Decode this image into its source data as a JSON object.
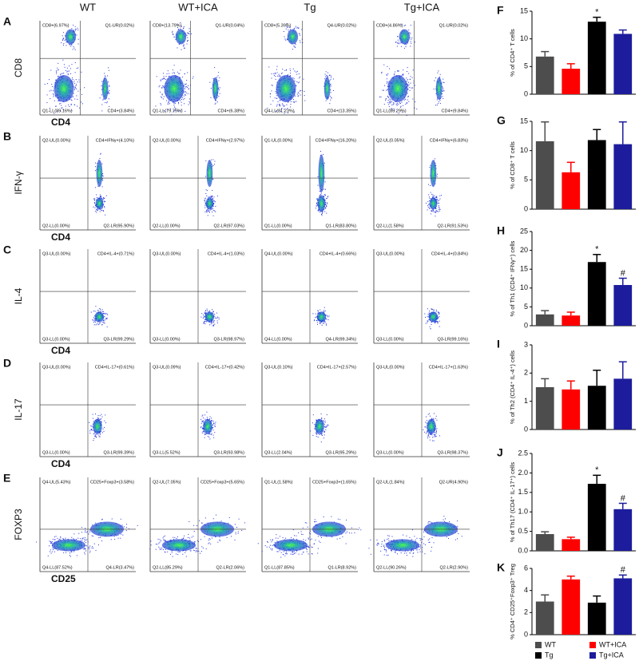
{
  "column_headers": [
    "WT",
    "WT+ICA",
    "Tg",
    "Tg+ICA"
  ],
  "flow_rows": [
    {
      "letter": "A",
      "y_label": "CD8",
      "x_label": "CD4",
      "plots": [
        [
          "CD8+(6.97%)",
          "Q1-UR(0.02%)",
          "Q1-LL(89.16%)",
          "CD4+(3.84%)"
        ],
        [
          "CD8+(13.79%)",
          "Q1-UR(0.04%)",
          "Q1-LL(79.79%)",
          "CD4+(6.38%)"
        ],
        [
          "CD8+(5.39%)",
          "Q4-UR(0.02%)",
          "Q4-LL(81.23%)",
          "CD4+(13.35%)"
        ],
        [
          "CD8+(4.86%)",
          "Q1-UR(0.02%)",
          "Q1-LL(85.29%)",
          "CD4+(9.84%)"
        ]
      ]
    },
    {
      "letter": "B",
      "y_label": "IFN-γ",
      "x_label": "CD4",
      "plots": [
        [
          "Q2-UL(0.00%)",
          "CD4+IFNγ+(4.10%)",
          "Q2-LL(0.00%)",
          "Q2-LR(95.90%)"
        ],
        [
          "Q2-UL(0.00%)",
          "CD4+IFNγ+(2.97%)",
          "Q2-LL(0.00%)",
          "Q2-LR(97.03%)"
        ],
        [
          "Q1-UL(0.00%)",
          "CD4+IFNγ+(16.20%)",
          "Q1-LL(0.00%)",
          "Q1-LR(83.80%)"
        ],
        [
          "Q2-UL(0.05%)",
          "CD4+IFNγ+(6.83%)",
          "Q2-LL(1.58%)",
          "Q2-LR(91.53%)"
        ]
      ]
    },
    {
      "letter": "C",
      "y_label": "IL-4",
      "x_label": "CD4",
      "plots": [
        [
          "Q3-UL(0.00%)",
          "CD4+IL-4+(0.71%)",
          "Q3-LL(0.00%)",
          "Q3-LR(99.29%)"
        ],
        [
          "Q3-UL(0.00%)",
          "CD4+IL-4+(1.03%)",
          "Q3-LL(0.00%)",
          "Q3-LR(98.97%)"
        ],
        [
          "Q4-UL(0.00%)",
          "CD4+IL-4+(0.66%)",
          "Q4-LL(0.00%)",
          "Q4-LR(99.34%)"
        ],
        [
          "Q3-UL(0.00%)",
          "CD4+IL-4+(0.84%)",
          "Q3-LL(0.00%)",
          "Q3-LR(99.16%)"
        ]
      ]
    },
    {
      "letter": "D",
      "y_label": "IL-17",
      "x_label": "CD4",
      "plots": [
        [
          "Q3-UL(0.00%)",
          "CD4+IL-17+(0.61%)",
          "Q3-LL(0.00%)",
          "Q3-LR(99.39%)"
        ],
        [
          "Q3-UL(0.09%)",
          "CD4+IL-17+(0.42%)",
          "Q3-LL(5.52%)",
          "Q3-LR(93.98%)"
        ],
        [
          "Q3-UL(0.10%)",
          "CD4+IL-17+(2.57%)",
          "Q3-LL(2.04%)",
          "Q3-LR(95.29%)"
        ],
        [
          "Q3-UL(0.00%)",
          "CD4+IL-17+(1.63%)",
          "Q3-LL(0.00%)",
          "Q3-LR(98.37%)"
        ]
      ]
    },
    {
      "letter": "E",
      "y_label": "FOXP3",
      "x_label": "CD25",
      "plots": [
        [
          "Q4-UL(5.43%)",
          "CD25+Foxp3+(3.58%)",
          "Q4-LL(87.52%)",
          "Q4-LR(3.47%)"
        ],
        [
          "Q2-UL(7.05%)",
          "CD25+Foxp3+(5.65%)",
          "Q2-LL(85.29%)",
          "Q2-LR(2.06%)"
        ],
        [
          "Q1-UL(1.58%)",
          "CD25+Foxp3+(1.65%)",
          "Q1-LL(87.85%)",
          "Q1-LR(8.92%)"
        ],
        [
          "Q2-UL(1.84%)",
          "Q2-UR(4.90%)",
          "Q2-LL(90.26%)",
          "Q2-LR(2.90%)"
        ]
      ]
    }
  ],
  "legend": [
    {
      "name": "WT",
      "color": "#4d4d4d"
    },
    {
      "name": "WT+ICA",
      "color": "#ff0000"
    },
    {
      "name": "Tg",
      "color": "#000000"
    },
    {
      "name": "Tg+ICA",
      "color": "#1c1c9c"
    }
  ],
  "chart_data": [
    {
      "type": "bar",
      "letter": "F",
      "y_label": "% of CD4⁺ T cells",
      "values": [
        6.8,
        4.6,
        13.1,
        10.9
      ],
      "errors": [
        0.9,
        0.9,
        0.8,
        0.7
      ],
      "markers": [
        null,
        null,
        "*",
        null
      ],
      "ylim": [
        0,
        15
      ],
      "yticks": [
        0,
        5,
        10,
        15
      ]
    },
    {
      "type": "bar",
      "letter": "G",
      "y_label": "% of CD8⁺ T cells",
      "values": [
        11.6,
        6.3,
        11.8,
        11.1
      ],
      "errors": [
        3.3,
        1.7,
        1.8,
        3.8
      ],
      "markers": [
        null,
        null,
        null,
        null
      ],
      "ylim": [
        0,
        15
      ],
      "yticks": [
        0,
        5,
        10,
        15
      ]
    },
    {
      "type": "bar",
      "letter": "H",
      "y_label": "% of Th1 (CD4⁺ IFNγ⁺) cells",
      "values": [
        3.0,
        2.7,
        16.9,
        10.8
      ],
      "errors": [
        1.0,
        0.9,
        2.0,
        1.8
      ],
      "markers": [
        null,
        null,
        "*",
        "#"
      ],
      "ylim": [
        0,
        25
      ],
      "yticks": [
        0,
        5,
        10,
        15,
        20,
        25
      ]
    },
    {
      "type": "bar",
      "letter": "I",
      "y_label": "% of Th2 (CD4⁺ IL-4⁺) cells",
      "values": [
        1.5,
        1.42,
        1.55,
        1.8
      ],
      "errors": [
        0.3,
        0.3,
        0.55,
        0.6
      ],
      "markers": [
        null,
        null,
        null,
        null
      ],
      "ylim": [
        0,
        3
      ],
      "yticks": [
        0,
        1,
        2,
        3
      ]
    },
    {
      "type": "bar",
      "letter": "J",
      "y_label": "% of Th17 (CD4⁺ IL-17⁺) cells",
      "values": [
        0.43,
        0.3,
        1.72,
        1.07
      ],
      "errors": [
        0.06,
        0.05,
        0.22,
        0.15
      ],
      "markers": [
        null,
        null,
        "*",
        "#"
      ],
      "ylim": [
        0,
        2.5
      ],
      "yticks": [
        {
          "value": 0,
          "label": "0.0"
        },
        0.5,
        {
          "value": 1,
          "label": "1.0"
        },
        1.5,
        {
          "value": 2,
          "label": "2.0"
        },
        2.5
      ]
    },
    {
      "type": "bar",
      "letter": "K",
      "y_label": "% CD4⁺ CD25⁺Foxp3⁺ Treg",
      "values": [
        3.0,
        5.0,
        2.9,
        5.1
      ],
      "errors": [
        0.6,
        0.3,
        0.6,
        0.3
      ],
      "markers": [
        null,
        null,
        null,
        "#"
      ],
      "ylim": [
        0,
        6
      ],
      "yticks": [
        0,
        2,
        4,
        6
      ]
    }
  ]
}
